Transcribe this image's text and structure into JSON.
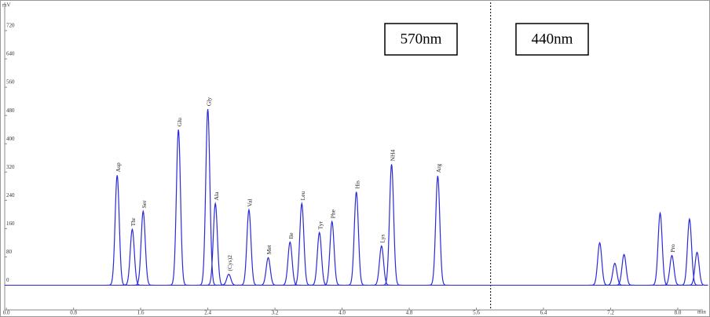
{
  "chart_data": {
    "type": "chromatogram",
    "y_label": "mV",
    "x_label": "min",
    "color": "#2b2bd8",
    "xlim": [
      -0.02,
      8.3
    ],
    "ylim": [
      -70,
      800
    ],
    "xticks": [
      {
        "value": 0,
        "label": "0.0"
      },
      0.8,
      1.6,
      2.4,
      3.2,
      {
        "value": 4,
        "label": "4.0"
      },
      4.8,
      5.6,
      6.4,
      7.2,
      {
        "value": 8,
        "label": "8.0"
      }
    ],
    "yticks": [
      0,
      80,
      160,
      240,
      320,
      400,
      480,
      560,
      640,
      720
    ],
    "divider": 5.77,
    "annotations": [
      "570nm",
      "440nm"
    ],
    "peaks": [
      {
        "name": "Asp",
        "x": 1.32,
        "height": 311
      },
      {
        "name": "Thr",
        "x": 1.5,
        "height": 158
      },
      {
        "name": "Ser",
        "x": 1.63,
        "height": 209
      },
      {
        "name": "Glu",
        "x": 2.05,
        "height": 440
      },
      {
        "name": "Gly",
        "x": 2.4,
        "height": 498
      },
      {
        "name": "Ala",
        "x": 2.49,
        "height": 231
      },
      {
        "name": "(Cys)2",
        "x": 2.65,
        "height": 31
      },
      {
        "name": "Val",
        "x": 2.89,
        "height": 213
      },
      {
        "name": "Met",
        "x": 3.12,
        "height": 78
      },
      {
        "name": "Ile",
        "x": 3.38,
        "height": 122
      },
      {
        "name": "Leu",
        "x": 3.52,
        "height": 231
      },
      {
        "name": "Tyr",
        "x": 3.73,
        "height": 149
      },
      {
        "name": "Phe",
        "x": 3.88,
        "height": 180
      },
      {
        "name": "His",
        "x": 4.17,
        "height": 264
      },
      {
        "name": "Lys",
        "x": 4.47,
        "height": 111
      },
      {
        "name": "NH4",
        "x": 4.59,
        "height": 342
      },
      {
        "name": "Arg",
        "x": 5.14,
        "height": 309
      },
      {
        "name": null,
        "x": 7.07,
        "height": 120
      },
      {
        "name": null,
        "x": 7.25,
        "height": 62
      },
      {
        "name": null,
        "x": 7.36,
        "height": 87
      },
      {
        "name": null,
        "x": 7.79,
        "height": 204
      },
      {
        "name": "Pro",
        "x": 7.93,
        "height": 84
      },
      {
        "name": null,
        "x": 8.14,
        "height": 187
      },
      {
        "name": null,
        "x": 8.23,
        "height": 93
      }
    ]
  }
}
